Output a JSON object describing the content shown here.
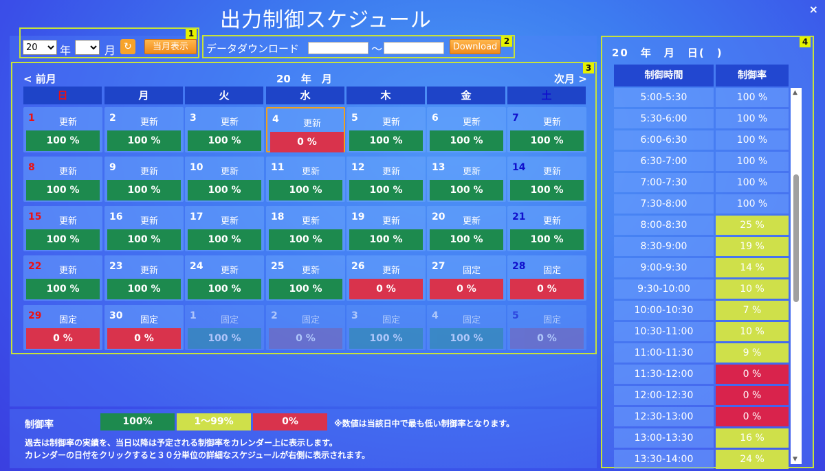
{
  "title": "出力制御スケジュール",
  "close": "×",
  "section_labels": [
    "1",
    "2",
    "3",
    "4"
  ],
  "controls": {
    "year_value": "20",
    "year_suffix": "年",
    "month_value": "",
    "month_suffix": "月",
    "refresh_icon": "refresh-icon",
    "current_month_label": "当月表示"
  },
  "download": {
    "label": "データダウンロード",
    "from_value": "",
    "tilde": "〜",
    "to_value": "",
    "button_label": "Download"
  },
  "calendar": {
    "prev": "< 前月",
    "next": "次月 >",
    "header": "20　年　月",
    "weekdays": [
      "日",
      "月",
      "火",
      "水",
      "木",
      "金",
      "土"
    ],
    "weeks": [
      [
        {
          "d": "1",
          "s": "更新",
          "v": "100 %",
          "c": "green"
        },
        {
          "d": "2",
          "s": "更新",
          "v": "100 %",
          "c": "green"
        },
        {
          "d": "3",
          "s": "更新",
          "v": "100 %",
          "c": "green"
        },
        {
          "d": "4",
          "s": "更新",
          "v": "0 %",
          "c": "red",
          "selected": true
        },
        {
          "d": "5",
          "s": "更新",
          "v": "100 %",
          "c": "green"
        },
        {
          "d": "6",
          "s": "更新",
          "v": "100 %",
          "c": "green"
        },
        {
          "d": "7",
          "s": "更新",
          "v": "100 %",
          "c": "green"
        }
      ],
      [
        {
          "d": "8",
          "s": "更新",
          "v": "100 %",
          "c": "green"
        },
        {
          "d": "9",
          "s": "更新",
          "v": "100 %",
          "c": "green"
        },
        {
          "d": "10",
          "s": "更新",
          "v": "100 %",
          "c": "green"
        },
        {
          "d": "11",
          "s": "更新",
          "v": "100 %",
          "c": "green"
        },
        {
          "d": "12",
          "s": "更新",
          "v": "100 %",
          "c": "green"
        },
        {
          "d": "13",
          "s": "更新",
          "v": "100 %",
          "c": "green"
        },
        {
          "d": "14",
          "s": "更新",
          "v": "100 %",
          "c": "green"
        }
      ],
      [
        {
          "d": "15",
          "s": "更新",
          "v": "100 %",
          "c": "green"
        },
        {
          "d": "16",
          "s": "更新",
          "v": "100 %",
          "c": "green"
        },
        {
          "d": "17",
          "s": "更新",
          "v": "100 %",
          "c": "green"
        },
        {
          "d": "18",
          "s": "更新",
          "v": "100 %",
          "c": "green"
        },
        {
          "d": "19",
          "s": "更新",
          "v": "100 %",
          "c": "green"
        },
        {
          "d": "20",
          "s": "更新",
          "v": "100 %",
          "c": "green"
        },
        {
          "d": "21",
          "s": "更新",
          "v": "100 %",
          "c": "green"
        }
      ],
      [
        {
          "d": "22",
          "s": "更新",
          "v": "100 %",
          "c": "green"
        },
        {
          "d": "23",
          "s": "更新",
          "v": "100 %",
          "c": "green"
        },
        {
          "d": "24",
          "s": "更新",
          "v": "100 %",
          "c": "green"
        },
        {
          "d": "25",
          "s": "更新",
          "v": "100 %",
          "c": "green"
        },
        {
          "d": "26",
          "s": "更新",
          "v": "0 %",
          "c": "red"
        },
        {
          "d": "27",
          "s": "固定",
          "v": "0 %",
          "c": "red"
        },
        {
          "d": "28",
          "s": "固定",
          "v": "0 %",
          "c": "red"
        }
      ],
      [
        {
          "d": "29",
          "s": "固定",
          "v": "0 %",
          "c": "red"
        },
        {
          "d": "30",
          "s": "固定",
          "v": "0 %",
          "c": "red"
        },
        {
          "d": "1",
          "s": "固定",
          "v": "100 %",
          "c": "teal",
          "dim": true
        },
        {
          "d": "2",
          "s": "固定",
          "v": "0 %",
          "c": "purple",
          "dim": true
        },
        {
          "d": "3",
          "s": "固定",
          "v": "100 %",
          "c": "teal",
          "dim": true
        },
        {
          "d": "4",
          "s": "固定",
          "v": "100 %",
          "c": "teal",
          "dim": true
        },
        {
          "d": "5",
          "s": "固定",
          "v": "0 %",
          "c": "purple",
          "dim": true
        }
      ]
    ]
  },
  "legend": {
    "label": "制御率",
    "green": "100%",
    "yellow": "1〜99%",
    "red": "0%",
    "note": "※数値は当該日中で最も低い制御率となります。",
    "desc1": "過去は制御率の実績を、当日以降は予定される制御率をカレンダー上に表示します。",
    "desc2": "カレンダーの日付をクリックすると３０分単位の詳細なスケジュールが右側に表示されます。"
  },
  "schedule": {
    "title": "20　年　月　日(　)",
    "col_time": "制御時間",
    "col_rate": "制御率",
    "rows": [
      {
        "t": "5:00-5:30",
        "r": "100 %",
        "c": ""
      },
      {
        "t": "5:30-6:00",
        "r": "100 %",
        "c": ""
      },
      {
        "t": "6:00-6:30",
        "r": "100 %",
        "c": ""
      },
      {
        "t": "6:30-7:00",
        "r": "100 %",
        "c": ""
      },
      {
        "t": "7:00-7:30",
        "r": "100 %",
        "c": ""
      },
      {
        "t": "7:30-8:00",
        "r": "100 %",
        "c": ""
      },
      {
        "t": "8:00-8:30",
        "r": "25 %",
        "c": "y"
      },
      {
        "t": "8:30-9:00",
        "r": "19 %",
        "c": "y"
      },
      {
        "t": "9:00-9:30",
        "r": "14 %",
        "c": "y"
      },
      {
        "t": "9:30-10:00",
        "r": "10 %",
        "c": "y"
      },
      {
        "t": "10:00-10:30",
        "r": "7 %",
        "c": "y"
      },
      {
        "t": "10:30-11:00",
        "r": "10 %",
        "c": "y"
      },
      {
        "t": "11:00-11:30",
        "r": "9 %",
        "c": "y"
      },
      {
        "t": "11:30-12:00",
        "r": "0 %",
        "c": "r"
      },
      {
        "t": "12:00-12:30",
        "r": "0 %",
        "c": "r"
      },
      {
        "t": "12:30-13:00",
        "r": "0 %",
        "c": "r"
      },
      {
        "t": "13:00-13:30",
        "r": "16 %",
        "c": "y"
      },
      {
        "t": "13:30-14:00",
        "r": "24 %",
        "c": "y"
      }
    ]
  }
}
